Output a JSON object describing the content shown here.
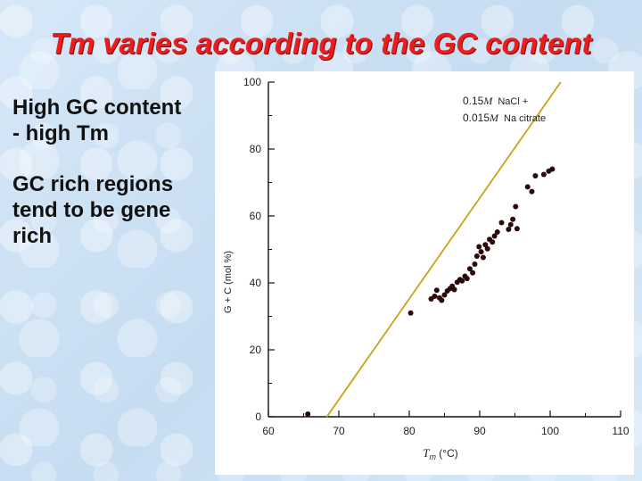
{
  "slide": {
    "title": "Tm varies according to the GC content",
    "bullet1_line1": "High GC content",
    "bullet1_line2": "-  high Tm",
    "bullet2_line1": "GC rich regions",
    "bullet2_line2": "tend to be gene",
    "bullet2_line3": "rich"
  },
  "colors": {
    "title": "#ee1c1c",
    "line": "#c9a21a",
    "points": "#2a0a0a"
  },
  "chart_data": {
    "type": "scatter",
    "xlabel_main": "T",
    "xlabel_sub": "m",
    "xlabel_unit": " (°C)",
    "ylabel": "G + C (mol %)",
    "xlim": [
      60,
      110
    ],
    "ylim": [
      0,
      100
    ],
    "xticks": [
      60,
      70,
      80,
      90,
      100,
      110
    ],
    "yticks": [
      0,
      20,
      40,
      60,
      80,
      100
    ],
    "grid": false,
    "annotation_line1_value": "0.15",
    "annotation_line1_M": "M",
    "annotation_line1_rest": "NaCl +",
    "annotation_line2_value": "0.015",
    "annotation_line2_M": "M",
    "annotation_line2_rest": "Na citrate",
    "fit_line": {
      "x": [
        68.3,
        101.5
      ],
      "y": [
        0,
        100
      ]
    },
    "series": [
      {
        "points": [
          [
            65.6,
            0.8
          ],
          [
            80.2,
            31
          ],
          [
            83.1,
            35.2
          ],
          [
            83.6,
            36
          ],
          [
            83.9,
            37.8
          ],
          [
            84.3,
            35.5
          ],
          [
            84.6,
            34.8
          ],
          [
            85.0,
            36.4
          ],
          [
            85.4,
            37.6
          ],
          [
            85.8,
            38.3
          ],
          [
            86.1,
            39.0
          ],
          [
            86.4,
            38.0
          ],
          [
            86.8,
            40.2
          ],
          [
            87.2,
            41.0
          ],
          [
            87.5,
            40.6
          ],
          [
            87.9,
            42.0
          ],
          [
            88.2,
            41.3
          ],
          [
            88.6,
            44.2
          ],
          [
            89.0,
            43.0
          ],
          [
            89.3,
            45.6
          ],
          [
            89.6,
            48.0
          ],
          [
            89.9,
            50.8
          ],
          [
            90.2,
            49.3
          ],
          [
            90.5,
            47.6
          ],
          [
            90.8,
            51.4
          ],
          [
            91.1,
            50.2
          ],
          [
            91.4,
            53.0
          ],
          [
            91.8,
            52.2
          ],
          [
            92.1,
            54.0
          ],
          [
            92.5,
            55.2
          ],
          [
            93.1,
            58.0
          ],
          [
            94.1,
            56.0
          ],
          [
            94.4,
            57.4
          ],
          [
            94.7,
            59.0
          ],
          [
            95.1,
            62.8
          ],
          [
            95.3,
            56.2
          ],
          [
            96.8,
            68.7
          ],
          [
            97.4,
            67.3
          ],
          [
            97.9,
            72.0
          ],
          [
            99.1,
            72.4
          ],
          [
            99.8,
            73.4
          ],
          [
            100.3,
            74.0
          ]
        ]
      }
    ]
  }
}
